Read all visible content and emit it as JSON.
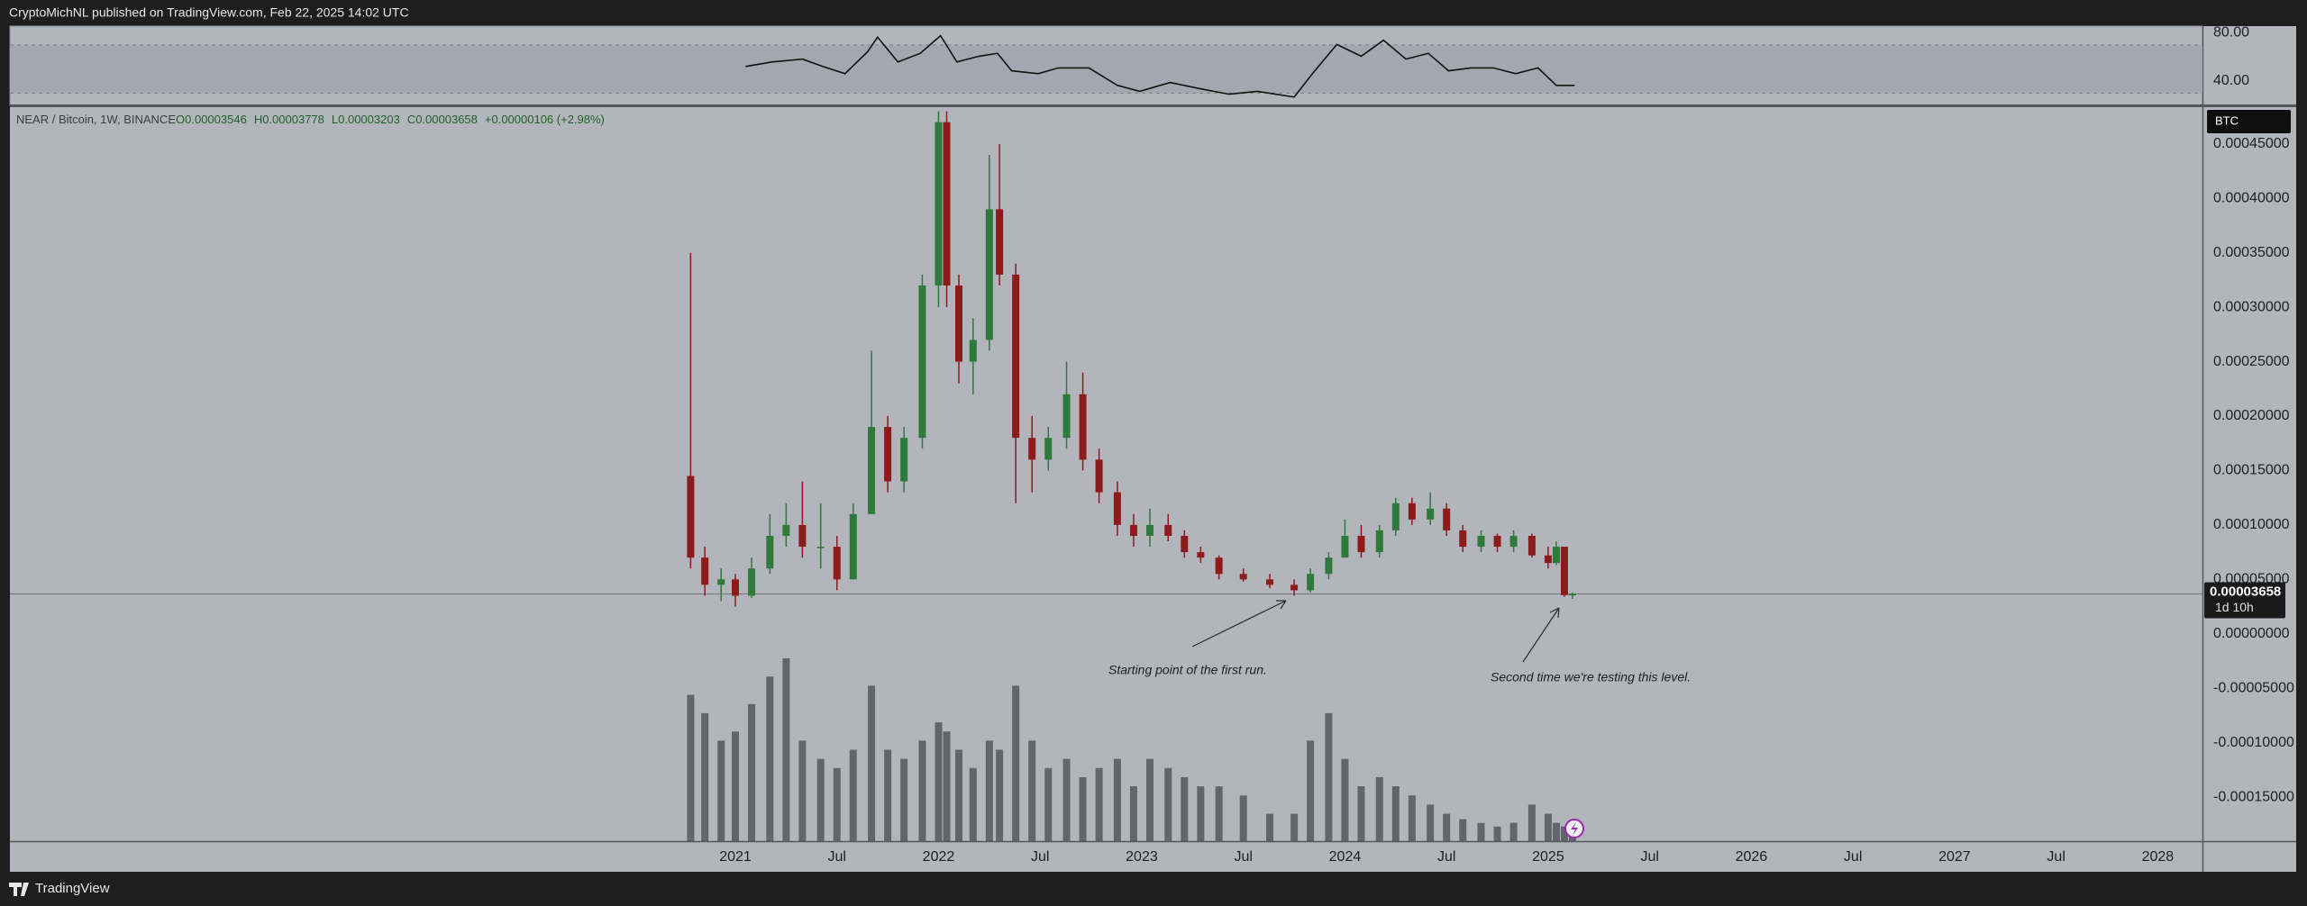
{
  "top_bar": {
    "text": "CryptoMichNL published on TradingView.com, Feb 22, 2025 14:02 UTC"
  },
  "footer": {
    "brand": "TradingView"
  },
  "chart_data": {
    "type": "candlestick",
    "title": "NEAR / Bitcoin, 1W, BINANCE",
    "header_fields": [
      {
        "key": "O",
        "value": "0.00003546"
      },
      {
        "key": "H",
        "value": "0.00003778"
      },
      {
        "key": "L",
        "value": "0.00003203"
      },
      {
        "key": "C",
        "value": "0.00003658"
      }
    ],
    "change": "+0.00000106 (+2.98%)",
    "currency": "BTC",
    "last_price": {
      "value": 3.658e-05,
      "label": "0.00003658"
    },
    "countdown": "1d 10h",
    "annotations": [
      "Starting point of the first run.",
      "Second time we're testing this level."
    ],
    "up_color": "#2f7a3a",
    "down_color": "#8e1b1b",
    "volume_color": "#55575d",
    "grid": false,
    "x": [
      2020.78,
      2020.85,
      2020.93,
      2021.0,
      2021.08,
      2021.17,
      2021.25,
      2021.33,
      2021.42,
      2021.5,
      2021.58,
      2021.67,
      2021.75,
      2021.83,
      2021.92,
      2022.0,
      2022.04,
      2022.1,
      2022.17,
      2022.25,
      2022.3,
      2022.38,
      2022.46,
      2022.54,
      2022.63,
      2022.71,
      2022.79,
      2022.88,
      2022.96,
      2023.04,
      2023.13,
      2023.21,
      2023.29,
      2023.38,
      2023.5,
      2023.63,
      2023.75,
      2023.83,
      2023.92,
      2024.0,
      2024.08,
      2024.17,
      2024.25,
      2024.33,
      2024.42,
      2024.5,
      2024.58,
      2024.67,
      2024.75,
      2024.83,
      2024.92,
      2025.0,
      2025.04,
      2025.08,
      2025.12
    ],
    "open": [
      0.000145,
      7e-05,
      4.5e-05,
      5e-05,
      3.5e-05,
      6e-05,
      9e-05,
      0.0001,
      8e-05,
      8e-05,
      5e-05,
      0.00011,
      0.00019,
      0.00014,
      0.00018,
      0.00032,
      0.00047,
      0.00032,
      0.00025,
      0.00027,
      0.00039,
      0.00033,
      0.00018,
      0.00016,
      0.00018,
      0.00022,
      0.00016,
      0.00013,
      0.0001,
      9e-05,
      0.0001,
      9e-05,
      7.5e-05,
      7e-05,
      5.5e-05,
      5e-05,
      4.5e-05,
      4e-05,
      5.5e-05,
      7e-05,
      9e-05,
      7.5e-05,
      9.5e-05,
      0.00012,
      0.000105,
      0.000115,
      9.5e-05,
      8e-05,
      9e-05,
      8e-05,
      9e-05,
      7.2e-05,
      6.5e-05,
      8e-05,
      3.546e-05
    ],
    "high": [
      0.00035,
      8e-05,
      6e-05,
      5.5e-05,
      7e-05,
      0.00011,
      0.00012,
      0.00014,
      0.00012,
      9e-05,
      0.00012,
      0.00026,
      0.0002,
      0.00019,
      0.00033,
      0.00048,
      0.00048,
      0.00033,
      0.00029,
      0.00044,
      0.00045,
      0.00034,
      0.0002,
      0.00019,
      0.00025,
      0.00024,
      0.00017,
      0.00014,
      0.00011,
      0.000115,
      0.00011,
      9.5e-05,
      8e-05,
      7.2e-05,
      6e-05,
      5.5e-05,
      5e-05,
      6e-05,
      7.5e-05,
      0.000105,
      0.0001,
      0.0001,
      0.000125,
      0.000125,
      0.00013,
      0.00012,
      0.0001,
      9.5e-05,
      9.2e-05,
      9.5e-05,
      9.2e-05,
      8e-05,
      8.5e-05,
      8e-05,
      3.778e-05
    ],
    "low": [
      6e-05,
      3.5e-05,
      3e-05,
      2.5e-05,
      3.3e-05,
      5.5e-05,
      8e-05,
      7e-05,
      6e-05,
      4e-05,
      5e-05,
      0.00011,
      0.00013,
      0.00013,
      0.00017,
      0.0003,
      0.0003,
      0.00023,
      0.00022,
      0.00026,
      0.00032,
      0.00012,
      0.00013,
      0.00015,
      0.00017,
      0.00015,
      0.00012,
      9e-05,
      8e-05,
      8e-05,
      8.5e-05,
      7e-05,
      6.5e-05,
      5e-05,
      4.8e-05,
      4.2e-05,
      3.5e-05,
      3.8e-05,
      5e-05,
      7e-05,
      7e-05,
      7e-05,
      9e-05,
      0.0001,
      0.0001,
      9e-05,
      7.5e-05,
      7.5e-05,
      7.5e-05,
      7.5e-05,
      7e-05,
      6e-05,
      6.3e-05,
      3.4e-05,
      3.203e-05
    ],
    "close": [
      7e-05,
      4.5e-05,
      5e-05,
      3.5e-05,
      6e-05,
      9e-05,
      0.0001,
      8e-05,
      8e-05,
      5e-05,
      0.00011,
      0.00019,
      0.00014,
      0.00018,
      0.00032,
      0.00047,
      0.00032,
      0.00025,
      0.00027,
      0.00039,
      0.00033,
      0.00018,
      0.00016,
      0.00018,
      0.00022,
      0.00016,
      0.00013,
      0.0001,
      9e-05,
      0.0001,
      9e-05,
      7.5e-05,
      7e-05,
      5.5e-05,
      5e-05,
      4.5e-05,
      4e-05,
      5.5e-05,
      7e-05,
      9e-05,
      7.5e-05,
      9.5e-05,
      0.00012,
      0.000105,
      0.000115,
      9.5e-05,
      8e-05,
      9e-05,
      8e-05,
      9e-05,
      7.2e-05,
      6.5e-05,
      8e-05,
      3.552e-05,
      3.658e-05
    ],
    "volume": [
      80,
      70,
      55,
      60,
      75,
      90,
      100,
      55,
      45,
      40,
      50,
      85,
      50,
      45,
      55,
      65,
      60,
      50,
      40,
      55,
      50,
      85,
      55,
      40,
      45,
      35,
      40,
      45,
      30,
      45,
      40,
      35,
      30,
      30,
      25,
      15,
      15,
      55,
      70,
      45,
      30,
      35,
      30,
      25,
      20,
      15,
      12,
      10,
      8,
      10,
      20,
      15,
      10,
      8,
      4
    ],
    "xlim": [
      2017.43,
      2028.22
    ],
    "xticks": [
      2021,
      {
        "value": 2021.5,
        "label": "Jul"
      },
      2022,
      {
        "value": 2022.5,
        "label": "Jul"
      },
      2023,
      {
        "value": 2023.5,
        "label": "Jul"
      },
      2024,
      {
        "value": 2024.5,
        "label": "Jul"
      },
      2025,
      {
        "value": 2025.5,
        "label": "Jul"
      },
      2026,
      {
        "value": 2026.5,
        "label": "Jul"
      },
      2027,
      {
        "value": 2027.5,
        "label": "Jul"
      },
      2028
    ],
    "ylim": [
      -0.0001905,
      0.0004838
    ],
    "yticks": [
      {
        "value": 0.00045,
        "label": "0.00045000"
      },
      {
        "value": 0.0004,
        "label": "0.00040000"
      },
      {
        "value": 0.00035,
        "label": "0.00035000"
      },
      {
        "value": 0.0003,
        "label": "0.00030000"
      },
      {
        "value": 0.00025,
        "label": "0.00025000"
      },
      {
        "value": 0.0002,
        "label": "0.00020000"
      },
      {
        "value": 0.00015,
        "label": "0.00015000"
      },
      {
        "value": 0.0001,
        "label": "0.00010000"
      },
      {
        "value": 5e-05,
        "label": "0.00005000"
      },
      {
        "value": 0,
        "label": "0.00000000"
      },
      {
        "value": -5e-05,
        "label": "-0.00005000"
      },
      {
        "value": -0.0001,
        "label": "-0.00010000"
      },
      {
        "value": -0.00015,
        "label": "-0.00015000"
      }
    ],
    "rsi": {
      "x": [
        2021.05,
        2021.18,
        2021.33,
        2021.43,
        2021.54,
        2021.65,
        2021.7,
        2021.8,
        2021.91,
        2022.01,
        2022.09,
        2022.2,
        2022.29,
        2022.36,
        2022.49,
        2022.59,
        2022.74,
        2022.88,
        2022.99,
        2023.14,
        2023.28,
        2023.43,
        2023.57,
        2023.75,
        2023.84,
        2023.96,
        2024.08,
        2024.19,
        2024.3,
        2024.41,
        2024.51,
        2024.62,
        2024.73,
        2024.84,
        2024.95,
        2025.04,
        2025.13
      ],
      "values": [
        52.1,
        55.8,
        58.2,
        52.1,
        46.1,
        64.2,
        76.4,
        55.8,
        63.0,
        77.6,
        55.8,
        60.6,
        63.0,
        48.5,
        46.1,
        50.9,
        50.9,
        36.4,
        31.5,
        38.8,
        33.9,
        29.1,
        31.5,
        26.7,
        46.1,
        70.3,
        60.6,
        73.9,
        58.2,
        63.0,
        48.5,
        50.9,
        50.9,
        46.1,
        50.9,
        36.4,
        36.4
      ],
      "band": [
        30,
        70
      ],
      "ylim": [
        20.6,
        84.8
      ],
      "yticks": [
        {
          "value": 80,
          "label": "80.00"
        },
        {
          "value": 40,
          "label": "40.00"
        }
      ]
    }
  }
}
